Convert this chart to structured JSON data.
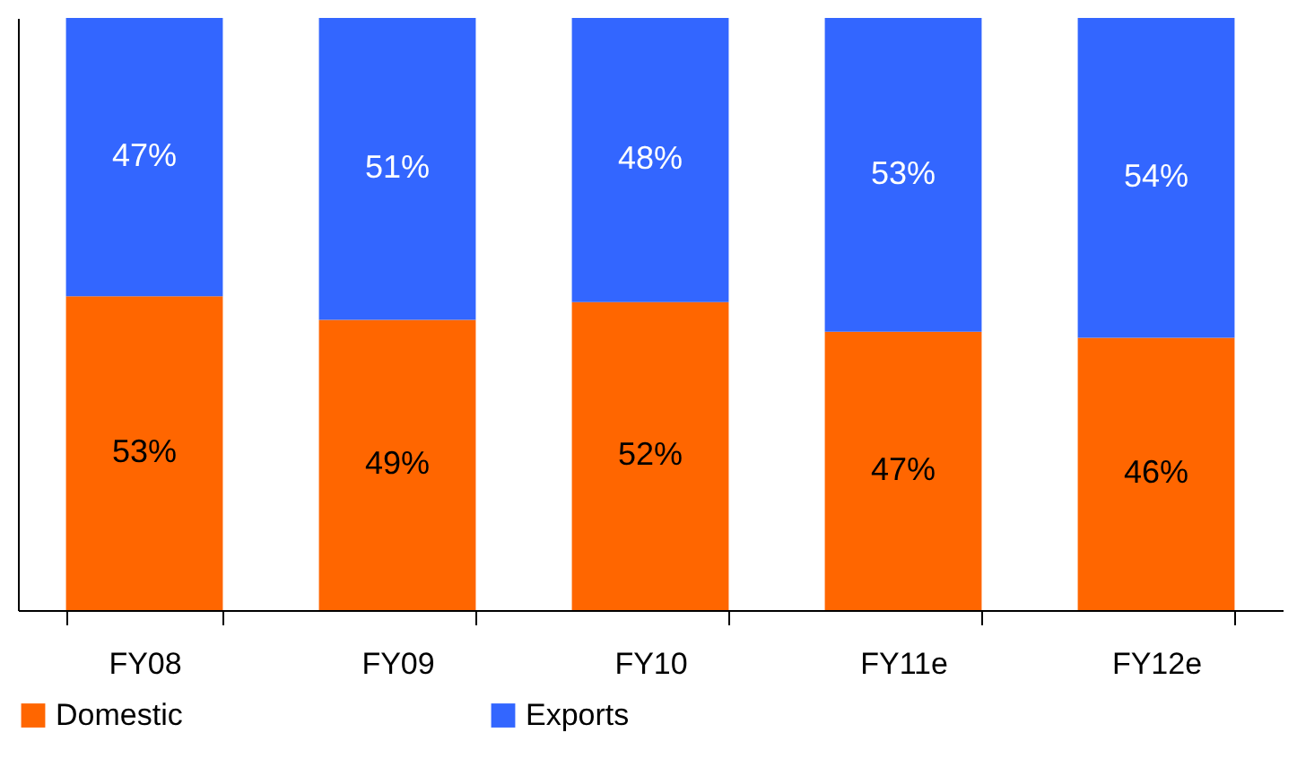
{
  "chart_data": {
    "type": "bar",
    "stacked": true,
    "categories": [
      "FY08",
      "FY09",
      "FY10",
      "FY11e",
      "FY12e"
    ],
    "series": [
      {
        "name": "Domestic",
        "color": "#ff6600",
        "values": [
          53,
          49,
          52,
          47,
          46
        ],
        "value_labels": [
          "53%",
          "49%",
          "52%",
          "47%",
          "46%"
        ]
      },
      {
        "name": "Exports",
        "color": "#3366ff",
        "values": [
          47,
          51,
          48,
          53,
          54
        ],
        "value_labels": [
          "47%",
          "51%",
          "48%",
          "53%",
          "54%"
        ]
      }
    ],
    "legend": "bottom",
    "grid": false,
    "tick_labels": "x"
  }
}
